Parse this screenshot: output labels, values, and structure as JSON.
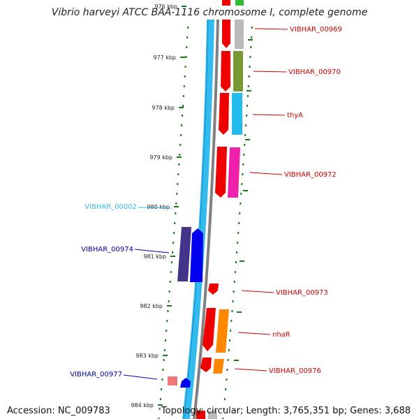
{
  "title": "Vibrio harveyi ATCC BAA-1116 chromosome I, complete genome",
  "accession": "Accession: NC_009783",
  "topology": "Topology: circular; Length: 3,765,351 bp; Genes: 3,688",
  "ticks": [
    "976 kbp",
    "977 kbp",
    "978 kbp",
    "979 kbp",
    "980 kbp",
    "981 kbp",
    "982 kbp",
    "983 kbp",
    "984 kbp"
  ],
  "genes": [
    {
      "name": "VIBHAR_00969",
      "color": "#cc0000"
    },
    {
      "name": "VIBHAR_00970",
      "color": "#cc0000"
    },
    {
      "name": "thyA",
      "color": "#cc0000"
    },
    {
      "name": "VIBHAR_00972",
      "color": "#cc0000"
    },
    {
      "name": "VIBHAR_00002",
      "color": "#33bbee"
    },
    {
      "name": "VIBHAR_00974",
      "color": "#0000aa"
    },
    {
      "name": "VIBHAR_00973",
      "color": "#cc0000"
    },
    {
      "name": "nhaR",
      "color": "#cc0000"
    },
    {
      "name": "VIBHAR_00976",
      "color": "#cc0000"
    },
    {
      "name": "VIBHAR_00977",
      "color": "#0000aa"
    }
  ],
  "colors": {
    "backbone": "#33bbee",
    "backbone_dark": "#1a88cc",
    "gray_track": "#808080",
    "tick_green": "#1a7a1a",
    "forward_gene": "#ee0000",
    "reverse_gene": "#0000ee",
    "gray_cog": "#bbbbbb",
    "olive_cog": "#779933",
    "cyan_cog": "#22bbee",
    "magenta_cog": "#ee22aa",
    "orange_cog": "#ff8800",
    "navy_cog": "#443388",
    "pink_cog": "#ee7777",
    "green_cog": "#33bb33"
  }
}
